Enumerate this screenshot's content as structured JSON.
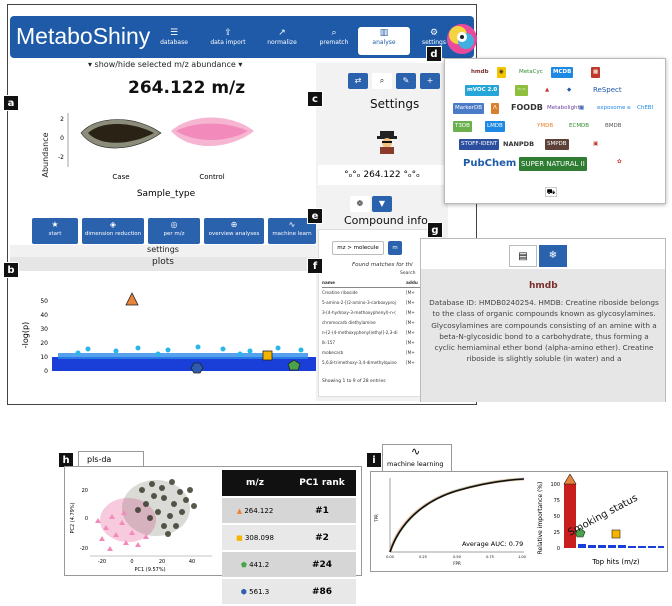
{
  "app": {
    "title": "MetaboShiny"
  },
  "nav": [
    {
      "icon": "☰",
      "label": "database"
    },
    {
      "icon": "⇪",
      "label": "data import"
    },
    {
      "icon": "↗",
      "label": "normalize"
    },
    {
      "icon": "⌕",
      "label": "prematch"
    },
    {
      "icon": "▥",
      "label": "analyse"
    },
    {
      "icon": "⚙",
      "label": "settings"
    }
  ],
  "labels": {
    "a": "a",
    "b": "b",
    "c": "c",
    "d": "d",
    "e": "e",
    "f": "f",
    "g": "g",
    "h": "h",
    "i": "i"
  },
  "panel_a": {
    "toggle": "▾ show/hide selected m/z abundance ▾",
    "mz": "264.122 m/z",
    "ylabel": "Abundance",
    "xlabel": "Sample_type",
    "cat1": "Case",
    "cat2": "Control",
    "yticks": [
      "2",
      "0",
      "-2"
    ]
  },
  "buttons": [
    {
      "icon": "★",
      "label": "start"
    },
    {
      "icon": "◈",
      "label": "dimension reduction"
    },
    {
      "icon": "◎",
      "label": "per m/z"
    },
    {
      "icon": "⊕",
      "label": "overview analyses"
    },
    {
      "icon": "∿",
      "label": "machine learn"
    }
  ],
  "tabs": {
    "settings": "settings",
    "plots": "plots"
  },
  "panel_b": {
    "ylabel": "-log(p)",
    "yticks": [
      "50",
      "40",
      "30",
      "20",
      "10",
      "0"
    ]
  },
  "panel_c": {
    "title": "Settings",
    "mz": "°ₒ°ₒ 264.122 °ₒ°ₒ"
  },
  "panel_e": {
    "title": "Compound info",
    "tab1": "mz > molecule",
    "tab2": "m"
  },
  "panel_f": {
    "found": "Found matches for thi",
    "search": "Search",
    "col1": "name",
    "col2": "addu",
    "rows": [
      [
        "Creatine riboside",
        "[M+"
      ],
      [
        "5-amino-2-[(2-amino-3-carboxyproj",
        "[M+"
      ],
      [
        "3-(4-hydroxy-3-methoxyphenyl)-n-(",
        "[M+"
      ],
      [
        "chromocarb diethylamine",
        "[M+"
      ],
      [
        "n-[2-(4-methoxyphenyl)ethyl]-2,3-di",
        "[M+"
      ],
      [
        "lk-157",
        "[M+"
      ],
      [
        "mobecarb",
        "[M+"
      ],
      [
        "5,6,8-trimethoxy-3,4-dimethylquino",
        "[M+"
      ]
    ],
    "footer": "Showing 1 to 9 of 28 entries"
  },
  "panel_g": {
    "logo": "hmdb",
    "text": "Database ID: HMDB0240254. HMDB: Creatine riboside belongs to the class of organic compounds known as glycosylamines. Glycosylamines are compounds consisting of an amine with a beta-N-glycosidic bond to a carbohydrate, thus forming a cyclic hemiaminal ether bond (alpha-amino ether). Creatine riboside is slightly soluble (in water) and a"
  },
  "panel_d": {
    "logos": [
      "hmdb",
      "◉",
      "MetaCyc",
      "MCDB",
      "▦",
      "mVOC 2.0",
      "~~",
      "▲",
      "◆",
      "ReSpect",
      "MarkerDB",
      "Λ",
      "FOODB",
      "Metabolights",
      "▦",
      "exposome explorer",
      "ChEBI",
      "T3DB",
      "LMDB",
      "YMDB",
      "ECMDB",
      "BMDB",
      "STOFF-IDENT",
      "NANPDB",
      "SMPDB",
      "▣",
      "PubChem",
      "SUPER NATURAL II",
      "✿"
    ]
  },
  "panel_h": {
    "title": "pls-da",
    "xlabel": "PC1 (9.57%)",
    "ylabel": "PC2 (4.79%)",
    "col1": "m/z",
    "col2": "PC1 rank",
    "rows": [
      {
        "mz": "264.122",
        "rank": "#1"
      },
      {
        "mz": "308.098",
        "rank": "#2"
      },
      {
        "mz": "441.2",
        "rank": "#24"
      },
      {
        "mz": "561.3",
        "rank": "#86"
      }
    ],
    "xticks": [
      "-20",
      "0",
      "20",
      "40"
    ],
    "yticks": [
      "20",
      "0",
      "-20"
    ]
  },
  "panel_i": {
    "title": "machine learning",
    "auc": "Average AUC: 0.79",
    "xlabel": "FPR",
    "ylabel": "TPR",
    "imp_ylabel": "Relative importance (%)",
    "imp_xlabel": "Top hits (m/z)",
    "annot": "Smoking status",
    "yticks": [
      "100",
      "75",
      "50",
      "25",
      "0"
    ],
    "roc_ticks": [
      "0.00",
      "0.25",
      "0.50",
      "0.75",
      "1.00"
    ]
  },
  "colors": {
    "brand": "#1e5aa8",
    "button": "#2b62ad",
    "case": "#5a5a4a",
    "control": "#f4a6c8",
    "points": "#1a3fd8"
  }
}
